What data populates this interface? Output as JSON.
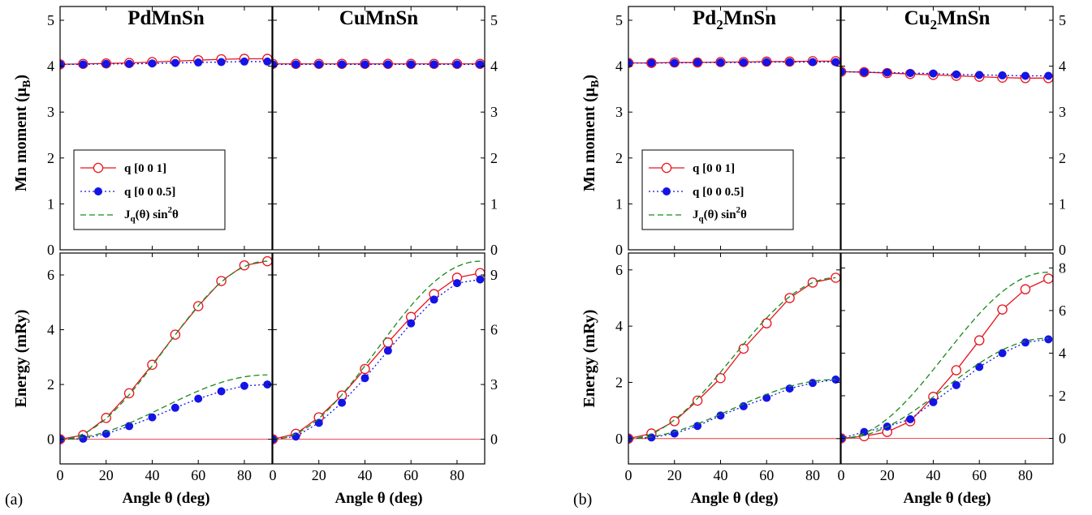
{
  "chart_data": [
    {
      "panel_label": "(a)",
      "columns": [
        {
          "title": "PdMnSn",
          "moment": {
            "ylabel": "Mn moment (μ",
            "ylabel_sub": "B",
            "ylabel_end": ")",
            "ylim": [
              0,
              5.3
            ],
            "yticks": [
              0,
              1,
              2,
              3,
              4,
              5
            ],
            "axis_side": "left",
            "series": [
              {
                "style": "q001",
                "x": [
                  0,
                  10,
                  20,
                  30,
                  40,
                  50,
                  60,
                  70,
                  80,
                  90
                ],
                "y": [
                  4.04,
                  4.05,
                  4.06,
                  4.07,
                  4.09,
                  4.11,
                  4.13,
                  4.15,
                  4.16,
                  4.16
                ]
              },
              {
                "style": "q0005",
                "x": [
                  0,
                  10,
                  20,
                  30,
                  40,
                  50,
                  60,
                  70,
                  80,
                  90
                ],
                "y": [
                  4.04,
                  4.04,
                  4.05,
                  4.05,
                  4.06,
                  4.07,
                  4.08,
                  4.09,
                  4.1,
                  4.1
                ]
              }
            ]
          },
          "energy": {
            "ylabel": "Energy (mRy)",
            "ylim": [
              -0.9,
              6.8
            ],
            "yticks": [
              0,
              2,
              4,
              6
            ],
            "axis_side": "left",
            "series": [
              {
                "style": "q001",
                "x": [
                  0,
                  10,
                  20,
                  30,
                  40,
                  50,
                  60,
                  70,
                  80,
                  90
                ],
                "y": [
                  0.0,
                  0.15,
                  0.78,
                  1.68,
                  2.72,
                  3.82,
                  4.86,
                  5.78,
                  6.35,
                  6.5
                ]
              },
              {
                "style": "q0005",
                "x": [
                  0,
                  10,
                  20,
                  30,
                  40,
                  50,
                  60,
                  70,
                  80,
                  90
                ],
                "y": [
                  0.0,
                  0.02,
                  0.2,
                  0.48,
                  0.8,
                  1.15,
                  1.48,
                  1.75,
                  1.95,
                  2.0
                ]
              },
              {
                "style": "fit",
                "scale": 6.5,
                "limit": 90
              },
              {
                "style": "fit",
                "scale": 2.35,
                "limit": 90
              }
            ]
          }
        },
        {
          "title": "CuMnSn",
          "moment": {
            "ylim": [
              0,
              5.3
            ],
            "yticks": [
              0,
              1,
              2,
              3,
              4,
              5
            ],
            "axis_side": "right",
            "series": [
              {
                "style": "q001",
                "x": [
                  0,
                  10,
                  20,
                  30,
                  40,
                  50,
                  60,
                  70,
                  80,
                  90
                ],
                "y": [
                  4.05,
                  4.05,
                  4.05,
                  4.05,
                  4.05,
                  4.05,
                  4.05,
                  4.05,
                  4.05,
                  4.05
                ]
              },
              {
                "style": "q0005",
                "x": [
                  0,
                  10,
                  20,
                  30,
                  40,
                  50,
                  60,
                  70,
                  80,
                  90
                ],
                "y": [
                  4.04,
                  4.04,
                  4.04,
                  4.04,
                  4.04,
                  4.04,
                  4.04,
                  4.04,
                  4.04,
                  4.04
                ]
              }
            ]
          },
          "energy": {
            "ylim": [
              -1.35,
              10.2
            ],
            "yticks": [
              0,
              3,
              6,
              9
            ],
            "axis_side": "right",
            "series": [
              {
                "style": "q001",
                "x": [
                  0,
                  10,
                  20,
                  30,
                  40,
                  50,
                  60,
                  70,
                  80,
                  90
                ],
                "y": [
                  0.0,
                  0.3,
                  1.2,
                  2.4,
                  3.85,
                  5.3,
                  6.7,
                  7.95,
                  8.85,
                  9.1
                ]
              },
              {
                "style": "q0005",
                "x": [
                  0,
                  10,
                  20,
                  30,
                  40,
                  50,
                  60,
                  70,
                  80,
                  90
                ],
                "y": [
                  0.0,
                  0.15,
                  0.9,
                  2.0,
                  3.35,
                  4.85,
                  6.35,
                  7.65,
                  8.55,
                  8.75
                ]
              },
              {
                "style": "fit",
                "scale": 9.75,
                "limit": 90
              }
            ]
          }
        }
      ],
      "legend": {
        "column": 0,
        "entries": [
          "q [0 0 1]",
          "q [0 0 0.5]"
        ],
        "fit_label_main": "J",
        "fit_label_sub": "q",
        "fit_label_rest": "(θ) sin",
        "fit_label_sup": "2",
        "fit_label_end": "θ"
      }
    },
    {
      "panel_label": "(b)",
      "columns": [
        {
          "title": "Pd",
          "title_sub": "2",
          "title_rest": "MnSn",
          "moment": {
            "ylabel": "Mn moment (μ",
            "ylabel_sub": "B",
            "ylabel_end": ")",
            "ylim": [
              0,
              5.3
            ],
            "yticks": [
              0,
              1,
              2,
              3,
              4,
              5
            ],
            "axis_side": "left",
            "series": [
              {
                "style": "q001",
                "x": [
                  0,
                  10,
                  20,
                  30,
                  40,
                  50,
                  60,
                  70,
                  80,
                  90
                ],
                "y": [
                  4.07,
                  4.07,
                  4.08,
                  4.08,
                  4.09,
                  4.09,
                  4.1,
                  4.1,
                  4.11,
                  4.11
                ]
              },
              {
                "style": "q0005",
                "x": [
                  0,
                  10,
                  20,
                  30,
                  40,
                  50,
                  60,
                  70,
                  80,
                  90
                ],
                "y": [
                  4.07,
                  4.07,
                  4.07,
                  4.08,
                  4.08,
                  4.08,
                  4.09,
                  4.09,
                  4.09,
                  4.09
                ]
              }
            ]
          },
          "energy": {
            "ylabel": "Energy (mRy)",
            "ylim": [
              -0.9,
              6.6
            ],
            "yticks": [
              0,
              2,
              4,
              6
            ],
            "axis_side": "left",
            "series": [
              {
                "style": "q001",
                "x": [
                  0,
                  10,
                  20,
                  30,
                  40,
                  50,
                  60,
                  70,
                  80,
                  90
                ],
                "y": [
                  0.0,
                  0.18,
                  0.62,
                  1.35,
                  2.15,
                  3.2,
                  4.1,
                  5.0,
                  5.55,
                  5.72
                ]
              },
              {
                "style": "q0005",
                "x": [
                  0,
                  10,
                  20,
                  30,
                  40,
                  50,
                  60,
                  70,
                  80,
                  90
                ],
                "y": [
                  0.0,
                  0.04,
                  0.18,
                  0.45,
                  0.82,
                  1.15,
                  1.45,
                  1.78,
                  1.98,
                  2.1
                ]
              },
              {
                "style": "fit",
                "scale": 5.72,
                "limit": 90
              },
              {
                "style": "fit",
                "scale": 2.1,
                "limit": 90
              }
            ]
          }
        },
        {
          "title": "Cu",
          "title_sub": "2",
          "title_rest": "MnSn",
          "moment": {
            "ylim": [
              0,
              5.3
            ],
            "yticks": [
              0,
              1,
              2,
              3,
              4,
              5
            ],
            "axis_side": "right",
            "series": [
              {
                "style": "q001",
                "x": [
                  0,
                  10,
                  20,
                  30,
                  40,
                  50,
                  60,
                  70,
                  80,
                  90
                ],
                "y": [
                  3.88,
                  3.87,
                  3.85,
                  3.83,
                  3.81,
                  3.79,
                  3.77,
                  3.75,
                  3.74,
                  3.74
                ]
              },
              {
                "style": "q0005",
                "x": [
                  0,
                  10,
                  20,
                  30,
                  40,
                  50,
                  60,
                  70,
                  80,
                  90
                ],
                "y": [
                  3.88,
                  3.87,
                  3.86,
                  3.85,
                  3.84,
                  3.82,
                  3.81,
                  3.8,
                  3.79,
                  3.79
                ]
              }
            ]
          },
          "energy": {
            "ylim": [
              -1.2,
              8.7
            ],
            "yticks": [
              0,
              2,
              4,
              6,
              8
            ],
            "axis_side": "right",
            "series": [
              {
                "style": "q001",
                "x": [
                  0,
                  10,
                  20,
                  30,
                  40,
                  50,
                  60,
                  70,
                  80,
                  90
                ],
                "y": [
                  0.0,
                  0.1,
                  0.3,
                  0.8,
                  1.95,
                  3.2,
                  4.6,
                  6.05,
                  7.0,
                  7.5
                ]
              },
              {
                "style": "q0005",
                "x": [
                  0,
                  10,
                  20,
                  30,
                  40,
                  50,
                  60,
                  70,
                  80,
                  90
                ],
                "y": [
                  0.0,
                  0.3,
                  0.55,
                  0.9,
                  1.7,
                  2.5,
                  3.35,
                  4.0,
                  4.5,
                  4.65
                ]
              },
              {
                "style": "fit",
                "scale": 7.8,
                "limit": 90
              },
              {
                "style": "fit",
                "scale": 4.7,
                "limit": 90
              }
            ]
          }
        }
      ],
      "legend": {
        "column": 0,
        "entries": [
          "q [0 0 1]",
          "q [0 0 0.5]"
        ],
        "fit_label_main": "J",
        "fit_label_sub": "q",
        "fit_label_rest": "(θ) sin",
        "fit_label_sup": "2",
        "fit_label_end": "θ"
      }
    }
  ],
  "xaxis": {
    "label": "Angle θ (deg)",
    "xlim": [
      0,
      92
    ],
    "xticks": [
      0,
      20,
      40,
      60,
      80
    ]
  },
  "colors": {
    "q001": "#e8141e",
    "q0005": "#1414e6",
    "fit": "#1a8a1a",
    "zero_line": "#e8141e"
  }
}
